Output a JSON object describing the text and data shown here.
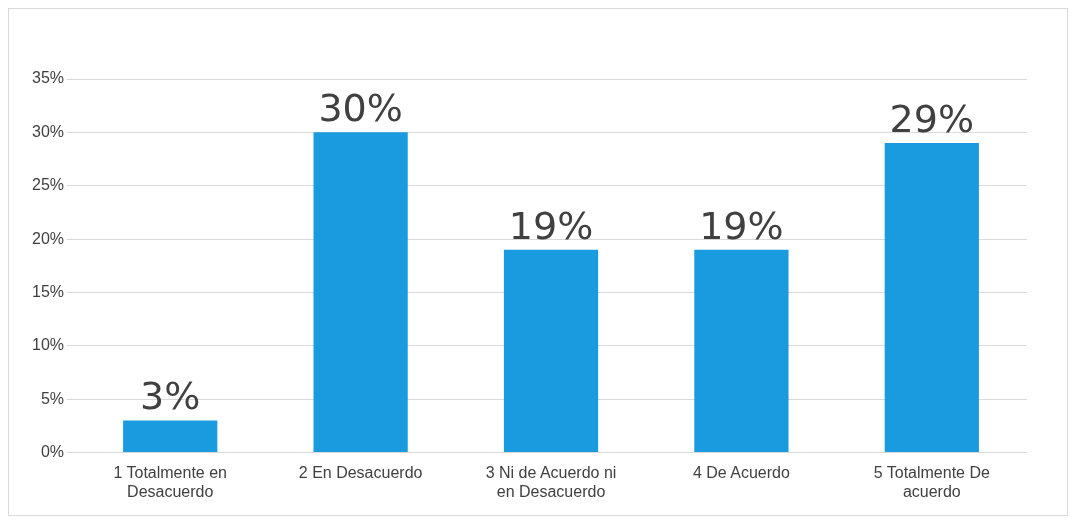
{
  "chart_data": {
    "type": "bar",
    "categories": [
      "1 Totalmente en Desacuerdo",
      "2 En Desacuerdo",
      "3 Ni de Acuerdo ni en Desacuerdo",
      "4 De Acuerdo",
      "5 Totalmente De acuerdo"
    ],
    "values": [
      3,
      30,
      19,
      19,
      29
    ],
    "value_labels": [
      "3%",
      "30%",
      "19%",
      "19%",
      "29%"
    ],
    "color": "#1a9be0",
    "ylim": [
      0,
      35
    ],
    "yticks": [
      {
        "value": 0,
        "label": "0%"
      },
      {
        "value": 5,
        "label": "5%"
      },
      {
        "value": 10,
        "label": "10%"
      },
      {
        "value": 15,
        "label": "15%"
      },
      {
        "value": 20,
        "label": "20%"
      },
      {
        "value": 25,
        "label": "25%"
      },
      {
        "value": 30,
        "label": "30%"
      },
      {
        "value": 35,
        "label": "35%"
      }
    ],
    "grid": "y"
  }
}
